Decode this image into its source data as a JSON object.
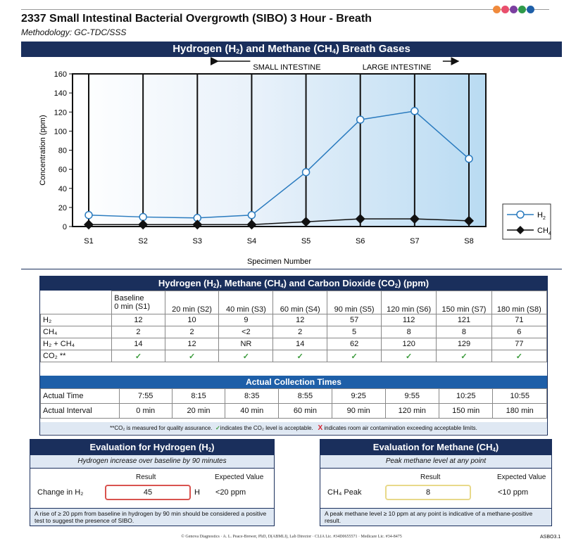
{
  "doc": {
    "title": "2337 Small Intestinal Bacterial Overgrowth (SIBO) 3 Hour - Breath",
    "methodology": "Methodology: GC-TDC/SSS",
    "dot_colors": [
      "#f08a3c",
      "#e94f6d",
      "#7b3fa0",
      "#2e9a4a",
      "#1e5fa8"
    ]
  },
  "chart_header": {
    "pre": "Hydrogen (H",
    "mid": ") and Methane (CH",
    "post": ") Breath Gases",
    "sub1": "2",
    "sub2": "4"
  },
  "chart_data": {
    "type": "line",
    "categories": [
      "S1",
      "S2",
      "S3",
      "S4",
      "S5",
      "S6",
      "S7",
      "S8"
    ],
    "series": [
      {
        "name": "H2",
        "values": [
          12,
          10,
          9,
          12,
          57,
          112,
          121,
          71
        ],
        "color": "#2a7bbf",
        "marker": "circle"
      },
      {
        "name": "CH4",
        "values": [
          2,
          2,
          2,
          2,
          5,
          8,
          8,
          6
        ],
        "color": "#111111",
        "marker": "diamond"
      }
    ],
    "ylabel": "Concentration (ppm)",
    "xlabel": "Specimen Number",
    "ylim": [
      0,
      160
    ],
    "yticks": [
      0,
      20,
      40,
      60,
      80,
      100,
      120,
      140,
      160
    ],
    "regions": {
      "small": "SMALL INTESTINE",
      "large": "LARGE INTESTINE"
    },
    "legend": {
      "h2_main": "H",
      "h2_sub": "2",
      "ch4_main": "CH",
      "ch4_sub": "4",
      "position": "right"
    }
  },
  "table": {
    "header": {
      "pre": "Hydrogen (H",
      "a": "), Methane (CH",
      "b": ") and Carbon Dioxide (CO",
      "post": ") (ppm)",
      "s2": "2",
      "s4": "4"
    },
    "baseline_label": "Baseline",
    "columns": [
      "0 min (S1)",
      "20 min (S2)",
      "40 min (S3)",
      "60 min (S4)",
      "90 min (S5)",
      "120 min (S6)",
      "150 min (S7)",
      "180 min (S8)"
    ],
    "rows": [
      {
        "label": "H₂",
        "values": [
          "12",
          "10",
          "9",
          "12",
          "57",
          "112",
          "121",
          "71"
        ]
      },
      {
        "label": "CH₄",
        "values": [
          "2",
          "2",
          "<2",
          "2",
          "5",
          "8",
          "8",
          "6"
        ]
      },
      {
        "label": "H₂ + CH₄",
        "values": [
          "14",
          "12",
          "NR",
          "14",
          "62",
          "120",
          "129",
          "77"
        ]
      }
    ],
    "co2_label": "CO₂ **",
    "check": "✓",
    "collection_header": "Actual Collection Times",
    "time_label": "Actual Time",
    "times": [
      "7:55",
      "8:15",
      "8:35",
      "8:55",
      "9:25",
      "9:55",
      "10:25",
      "10:55"
    ],
    "interval_label": "Actual Interval",
    "intervals": [
      "0 min",
      "20 min",
      "40 min",
      "60 min",
      "90 min",
      "120 min",
      "150 min",
      "180 min"
    ],
    "note_a": "**CO₂ is measured for quality assurance.",
    "note_b": "indicates the CO₂ level is acceptable.",
    "note_x": "X",
    "note_c": "indicates room air contamination exceeding acceptable limits."
  },
  "eval_h2": {
    "title_pre": "Evaluation for Hydrogen (H",
    "title_sub": "2",
    "title_post": ")",
    "subtitle": "Hydrogen increase over baseline by 90 minutes",
    "result_label": "Result",
    "expected_label": "Expected Value",
    "row_label": "Change in H₂",
    "result": "45",
    "flag": "H",
    "expected": "<20 ppm",
    "note": "A rise of ≥ 20 ppm from baseline in hydrogen by 90 min should be considered a positive test to suggest the presence of SIBO.",
    "box_color": "#d9534f"
  },
  "eval_ch4": {
    "title_pre": "Evaluation for Methane (CH",
    "title_sub": "4",
    "title_post": ")",
    "subtitle": "Peak methane level at any point",
    "result_label": "Result",
    "expected_label": "Expected Value",
    "row_label": "CH₄ Peak",
    "result": "8",
    "expected": "<10 ppm",
    "note": "A peak methane level ≥ 10 ppm at any point is indicative of a methane-positive result.",
    "box_color": "#e8d98a"
  },
  "footer": {
    "text": "© Genova Diagnostics · A. L. Peace-Brewer, PhD, D(ABMLI), Lab Director · CLIA Lic. #34D0655571 · Medicare Lic. #34-8475",
    "code": "ASBO3.1"
  }
}
